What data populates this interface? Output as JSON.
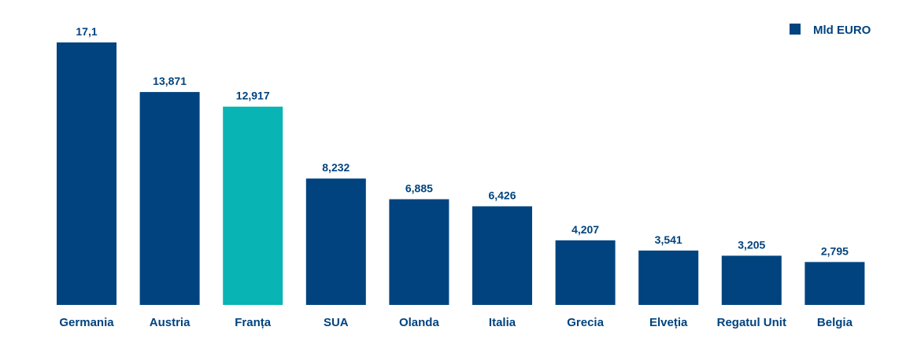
{
  "chart_data": {
    "type": "bar",
    "categories": [
      "Germania",
      "Austria",
      "Franța",
      "SUA",
      "Olanda",
      "Italia",
      "Grecia",
      "Elveția",
      "Regatul Unit",
      "Belgia"
    ],
    "value_labels": [
      "17,1",
      "13,871",
      "12,917",
      "8,232",
      "6,885",
      "6,426",
      "4,207",
      "3,541",
      "3,205",
      "2,795"
    ],
    "series": [
      {
        "name": "Mld EURO",
        "values": [
          17.1,
          13.871,
          12.917,
          8.232,
          6.885,
          6.426,
          4.207,
          3.541,
          3.205,
          2.795
        ]
      }
    ],
    "ylim": [
      0,
      17.1
    ],
    "grid": false,
    "legend_position": "top-right",
    "colors": {
      "bar": "#00437f",
      "highlight": "#08b4b4",
      "text": "#00437f"
    },
    "highlight_category": "Franța"
  }
}
